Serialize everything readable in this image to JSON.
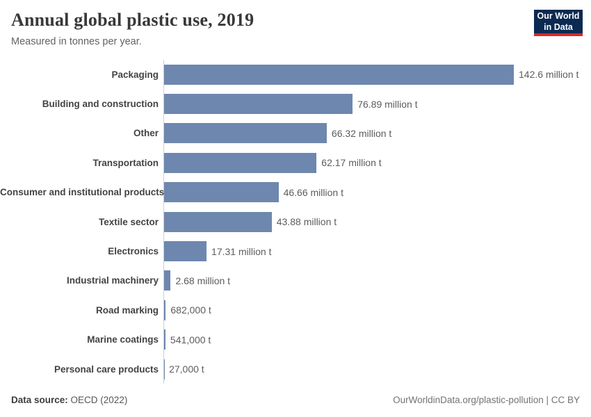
{
  "header": {
    "title": "Annual global plastic use, 2019",
    "subtitle": "Measured in tonnes per year.",
    "logo_line1": "Our World",
    "logo_line2": "in Data"
  },
  "chart_data": {
    "type": "bar",
    "orientation": "horizontal",
    "title": "Annual global plastic use, 2019",
    "subtitle": "Measured in tonnes per year.",
    "unit": "tonnes per year",
    "grid": false,
    "legend": false,
    "xlim_million_tonnes": [
      0,
      142.6
    ],
    "categories": [
      "Packaging",
      "Building and construction",
      "Other",
      "Transportation",
      "Consumer and institutional products",
      "Textile sector",
      "Electronics",
      "Industrial machinery",
      "Road marking",
      "Marine coatings",
      "Personal care products"
    ],
    "values_million_tonnes": [
      142.6,
      76.89,
      66.32,
      62.17,
      46.66,
      43.88,
      17.31,
      2.68,
      0.682,
      0.541,
      0.027
    ],
    "value_labels": [
      "142.6 million t",
      "76.89 million t",
      "66.32 million t",
      "62.17 million t",
      "46.66 million t",
      "43.88 million t",
      "17.31 million t",
      "2.68 million t",
      "682,000 t",
      "541,000 t",
      "27,000 t"
    ],
    "bar_color": "#6e87ae"
  },
  "footer": {
    "source_label": "Data source:",
    "source_value": "OECD (2022)",
    "credit": "OurWorldinData.org/plastic-pollution | CC BY"
  },
  "colors": {
    "bar": "#6e87ae",
    "axis": "#cfcfcf",
    "title": "#383838",
    "logo_navy": "#0b2a51",
    "logo_red": "#d7282f"
  }
}
